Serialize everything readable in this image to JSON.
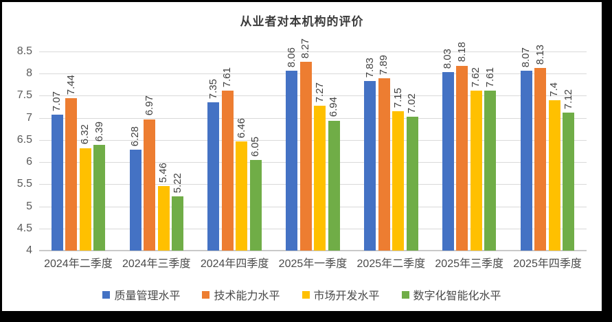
{
  "title": "从业者对本机构的评价",
  "chart_data": {
    "type": "bar",
    "title": "从业者对本机构的评价",
    "categories": [
      "2024年二季度",
      "2024年三季度",
      "2024年四季度",
      "2025年一季度",
      "2025年二季度",
      "2025年三季度",
      "2025年四季度"
    ],
    "series": [
      {
        "name": "质量管理水平",
        "color": "#4472C4",
        "values": [
          7.07,
          6.28,
          7.35,
          8.06,
          7.83,
          8.03,
          8.07
        ],
        "labels": [
          "7.07",
          "6.28",
          "7.35",
          "8.06",
          "7.83",
          "8.03",
          "8.07"
        ]
      },
      {
        "name": "技术能力水平",
        "color": "#ED7D31",
        "values": [
          7.44,
          6.97,
          7.61,
          8.27,
          7.89,
          8.18,
          8.13
        ],
        "labels": [
          "7.44",
          "6.97",
          "7.61",
          "8.27",
          "7.89",
          "8.18",
          "8.13"
        ]
      },
      {
        "name": "市场开发水平",
        "color": "#FFC000",
        "values": [
          6.32,
          5.46,
          6.46,
          7.27,
          7.15,
          7.62,
          7.4
        ],
        "labels": [
          "6.32",
          "5.46",
          "6.46",
          "7.27",
          "7.15",
          "7.62",
          "7.4"
        ]
      },
      {
        "name": "数字化智能化水平",
        "color": "#70AD47",
        "values": [
          6.39,
          5.22,
          6.05,
          6.94,
          7.02,
          7.61,
          7.12
        ],
        "labels": [
          "6.39",
          "5.22",
          "6.05",
          "6.94",
          "7.02",
          "7.61",
          "7.12"
        ]
      }
    ],
    "y_axis": {
      "min": 4,
      "max": 8.5,
      "step": 0.5,
      "ticks": [
        "8.5",
        "8",
        "7.5",
        "7",
        "6.5",
        "6",
        "5.5",
        "5",
        "4.5",
        "4"
      ]
    },
    "grid": true,
    "legend_position": "bottom",
    "data_labels_rotated": true
  }
}
